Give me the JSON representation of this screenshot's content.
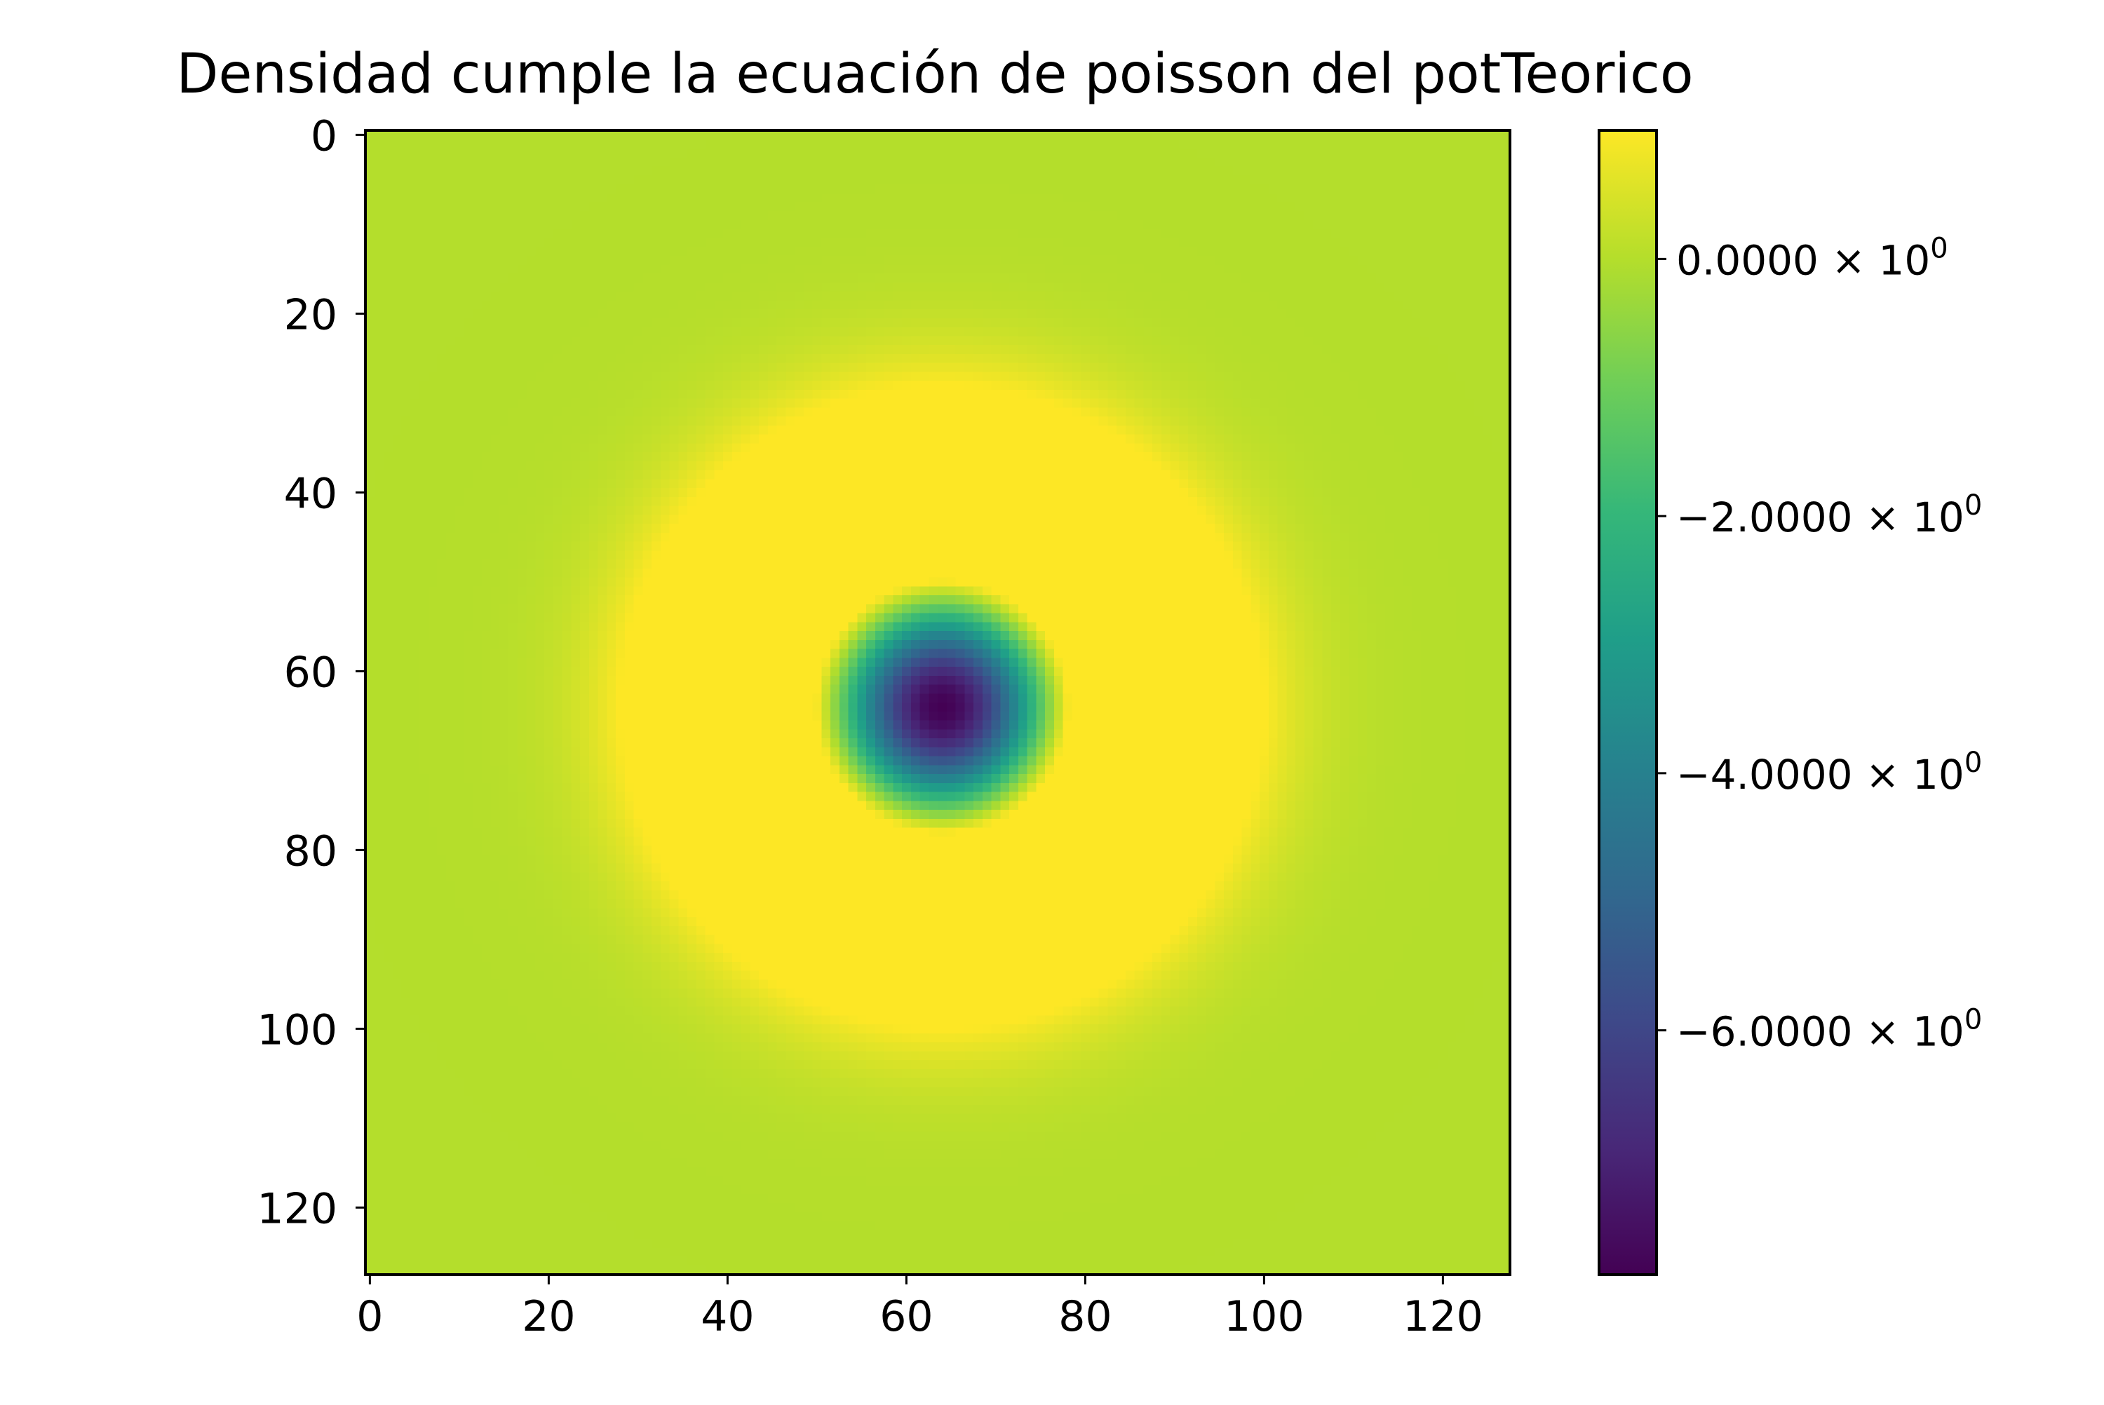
{
  "chart_data": {
    "type": "heatmap",
    "title": "Densidad cumple la ecuación de poisson del potTeorico",
    "xlabel": "",
    "ylabel": "",
    "xlim": [
      -0.5,
      127.5
    ],
    "ylim": [
      127.5,
      -0.5
    ],
    "y_axis_inverted": true,
    "grid": false,
    "grid_size": [
      128,
      128
    ],
    "field": {
      "description": "radially symmetric field centered on grid cell",
      "center": [
        64,
        64
      ],
      "min_value_at_center": -7.9,
      "ring_max_value": 1.0,
      "ring_radius_cells": 18,
      "background_value": 0.0
    },
    "x_ticks": [
      {
        "value": 0,
        "label": "0"
      },
      {
        "value": 20,
        "label": "20"
      },
      {
        "value": 40,
        "label": "40"
      },
      {
        "value": 60,
        "label": "60"
      },
      {
        "value": 80,
        "label": "80"
      },
      {
        "value": 100,
        "label": "100"
      },
      {
        "value": 120,
        "label": "120"
      }
    ],
    "y_ticks": [
      {
        "value": 0,
        "label": "0"
      },
      {
        "value": 20,
        "label": "20"
      },
      {
        "value": 40,
        "label": "40"
      },
      {
        "value": 60,
        "label": "60"
      },
      {
        "value": 80,
        "label": "80"
      },
      {
        "value": 100,
        "label": "100"
      },
      {
        "value": 120,
        "label": "120"
      }
    ],
    "colorbar": {
      "colormap": "viridis",
      "vmin": -7.9,
      "vmax": 1.0,
      "ticks": [
        {
          "value": 0,
          "mantissa": "0.0000",
          "times": "×",
          "base": "10",
          "exponent": "0"
        },
        {
          "value": -2,
          "mantissa": "−2.0000",
          "times": "×",
          "base": "10",
          "exponent": "0"
        },
        {
          "value": -4,
          "mantissa": "−4.0000",
          "times": "×",
          "base": "10",
          "exponent": "0"
        },
        {
          "value": -6,
          "mantissa": "−6.0000",
          "times": "×",
          "base": "10",
          "exponent": "0"
        }
      ]
    },
    "viridis_stops": [
      "#440154",
      "#482878",
      "#3e4989",
      "#31688e",
      "#26828e",
      "#1f9e89",
      "#35b779",
      "#6ece58",
      "#b5de2b",
      "#fde725"
    ]
  }
}
